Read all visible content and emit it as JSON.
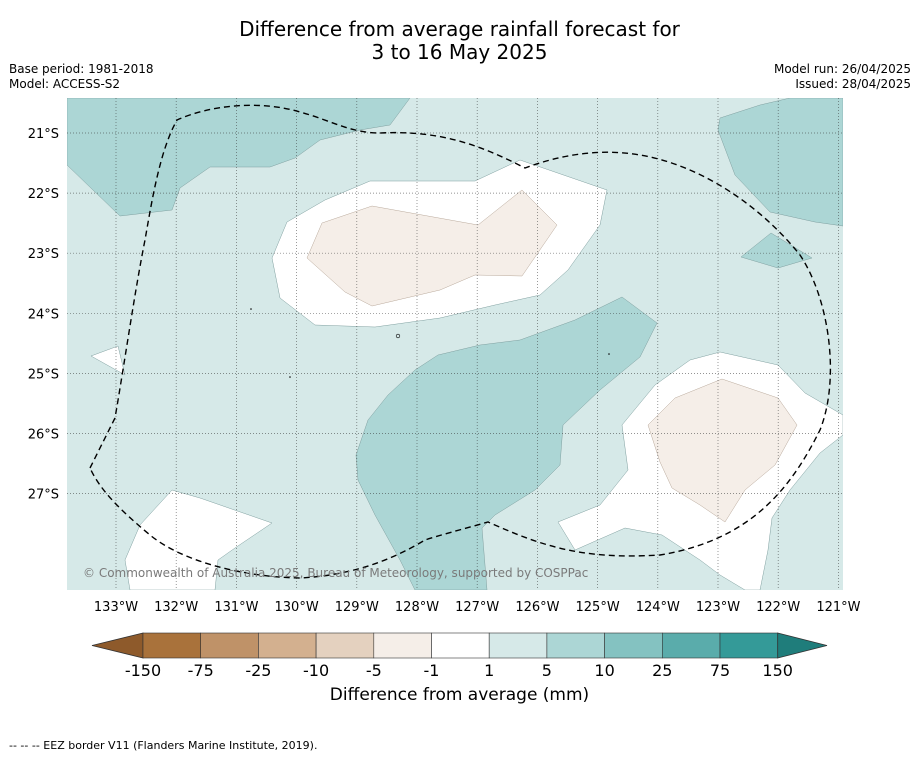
{
  "title_line1": "Difference from average rainfall forecast for",
  "title_line2": "3 to 16 May 2025",
  "base_period": "Base period: 1981-2018",
  "model": "Model: ACCESS-S2",
  "model_run": "Model run: 26/04/2025",
  "issued": "Issued: 28/04/2025",
  "copyright": "© Commonwealth of Australia 2025, Bureau of Meteorology, supported by COSPPac",
  "footer_note": "--  --  -- EEZ border V11 (Flanders Marine Institute, 2019).",
  "colorbar": {
    "label": "Difference from average (mm)",
    "ticks": [
      "-150",
      "-75",
      "-25",
      "-10",
      "-5",
      "-1",
      "1",
      "5",
      "10",
      "25",
      "75",
      "150"
    ],
    "colors": [
      "#a9723b",
      "#bf9268",
      "#d3b08f",
      "#e4d1bf",
      "#f5eee8",
      "#ffffff",
      "#d6e9e8",
      "#acd6d5",
      "#84c2c1",
      "#5aacab",
      "#349a98"
    ],
    "extend_low_color": "#8e5a2b",
    "extend_high_color": "#1f7d7b"
  },
  "map": {
    "lon_labels": [
      "133°W",
      "132°W",
      "131°W",
      "130°W",
      "129°W",
      "128°W",
      "127°W",
      "126°W",
      "125°W",
      "124°W",
      "123°W",
      "122°W",
      "121°W"
    ],
    "lat_labels": [
      "21°S",
      "22°S",
      "23°S",
      "24°S",
      "25°S",
      "26°S",
      "27°S"
    ],
    "background_category": "1 to 5 mm",
    "border": "EEZ border (dashed)"
  }
}
